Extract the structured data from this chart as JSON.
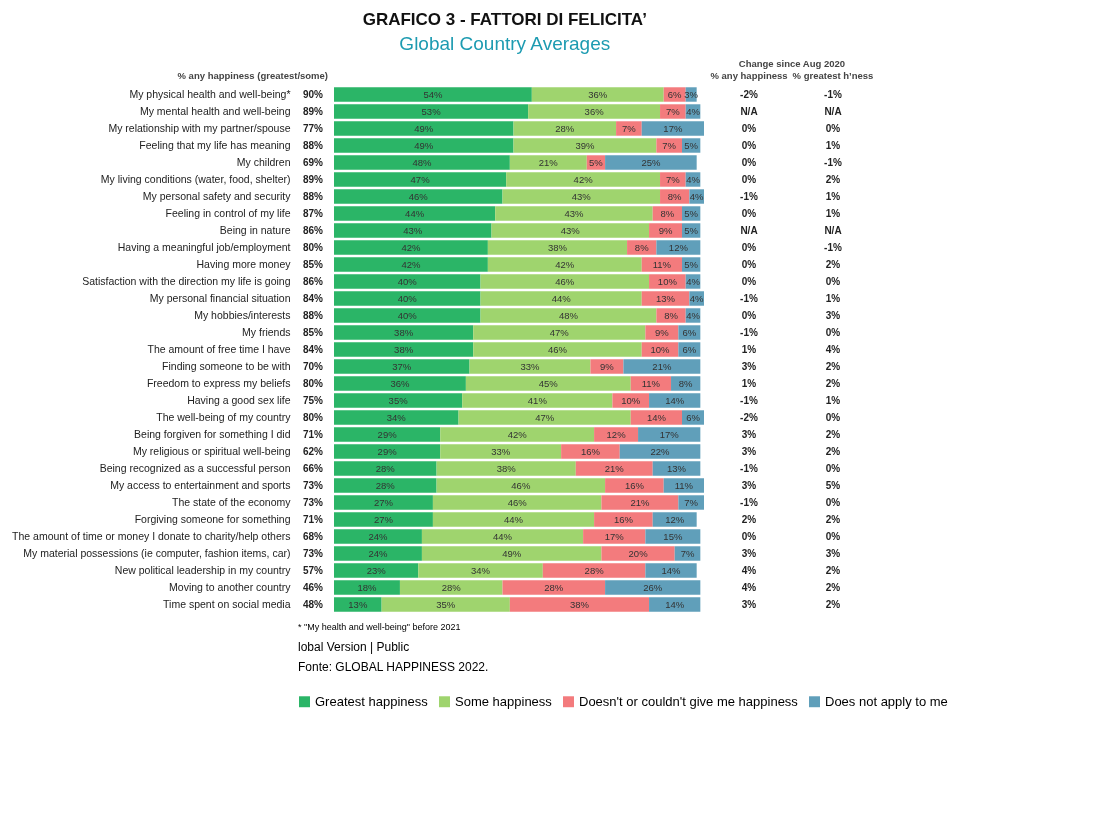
{
  "chart_data": [
    {
      "type": "other",
      "title": "% any happiness (greatest/some)",
      "annotations": [
        "90%",
        "89%",
        "77%",
        "88%",
        "69%",
        "89%",
        "88%",
        "87%",
        "86%",
        "80%",
        "85%",
        "86%",
        "84%",
        "88%",
        "85%",
        "84%",
        "70%",
        "80%",
        "75%",
        "80%",
        "71%",
        "62%",
        "66%",
        "73%",
        "73%",
        "71%",
        "68%",
        "73%",
        "57%",
        "46%",
        "48%"
      ]
    },
    {
      "type": "bar",
      "orientation": "horizontal",
      "stacked": true,
      "legend": "bottom",
      "title": "GRAFICO 3 - FATTORI DI FELICITA’",
      "subtitle": "Global Country Averages",
      "categories": [
        "My physical health and well-being*",
        "My mental health and well-being",
        "My relationship with my partner/spouse",
        "Feeling that my life has meaning",
        "My children",
        "My living conditions (water, food, shelter)",
        "My personal safety and security",
        "Feeling in control of my life",
        "Being in nature",
        "Having a meaningful job/employment",
        "Having more money",
        "Satisfaction with the direction my life is going",
        "My personal financial situation",
        "My hobbies/interests",
        "My friends",
        "The amount of free time I have",
        "Finding someone to be with",
        "Freedom to express my beliefs",
        "Having a good sex life",
        "The well-being of my country",
        "Being forgiven for something I did",
        "My religious or spiritual well-being",
        "Being recognized as a successful person",
        "My access to entertainment and sports",
        "The state of the economy",
        "Forgiving someone for something",
        "The amount of time or money I donate to charity/help others",
        "My material possessions (ie computer, fashion items, car)",
        "New political leadership in my country",
        "Moving to another country",
        "Time spent on social media"
      ],
      "series": [
        {
          "name": "Greatest happiness",
          "color": "#2bb567",
          "values": [
            54,
            53,
            49,
            49,
            48,
            47,
            46,
            44,
            43,
            42,
            42,
            40,
            40,
            40,
            38,
            38,
            37,
            36,
            35,
            34,
            29,
            29,
            28,
            28,
            27,
            27,
            24,
            24,
            23,
            18,
            13
          ],
          "value_labels": [
            "54%",
            "53%",
            "49%",
            "49%",
            "48%",
            "47%",
            "46%",
            "44%",
            "43%",
            "42%",
            "42%",
            "40%",
            "40%",
            "40%",
            "38%",
            "38%",
            "37%",
            "36%",
            "35%",
            "34%",
            "29%",
            "29%",
            "28%",
            "28%",
            "27%",
            "27%",
            "24%",
            "24%",
            "23%",
            "18%",
            "13%"
          ]
        },
        {
          "name": "Some happiness",
          "color": "#9fd46e",
          "values": [
            36,
            36,
            28,
            39,
            21,
            42,
            43,
            43,
            43,
            38,
            42,
            46,
            44,
            48,
            47,
            46,
            33,
            45,
            41,
            47,
            42,
            33,
            38,
            46,
            46,
            44,
            44,
            49,
            34,
            28,
            35
          ],
          "value_labels": [
            "36%",
            "36%",
            "28%",
            "39%",
            "21%",
            "42%",
            "43%",
            "43%",
            "43%",
            "38%",
            "42%",
            "46%",
            "44%",
            "48%",
            "47%",
            "46%",
            "33%",
            "45%",
            "41%",
            "47%",
            "42%",
            "33%",
            "38%",
            "46%",
            "46%",
            "44%",
            "44%",
            "49%",
            "34%",
            "28%",
            "35%"
          ]
        },
        {
          "name": "Doesn't or couldn't give me happiness",
          "color": "#f37b7d",
          "values": [
            6,
            7,
            7,
            7,
            5,
            7,
            8,
            8,
            9,
            8,
            11,
            10,
            13,
            8,
            9,
            10,
            9,
            11,
            10,
            14,
            12,
            16,
            21,
            16,
            21,
            16,
            17,
            20,
            28,
            28,
            38
          ],
          "value_labels": [
            "6%",
            "7%",
            "7%",
            "7%",
            "5%",
            "7%",
            "8%",
            "8%",
            "9%",
            "8%",
            "11%",
            "10%",
            "13%",
            "8%",
            "9%",
            "10%",
            "9%",
            "11%",
            "10%",
            "14%",
            "12%",
            "16%",
            "21%",
            "16%",
            "21%",
            "16%",
            "17%",
            "20%",
            "28%",
            "28%",
            "38%"
          ]
        },
        {
          "name": "Does not apply to me",
          "color": "#609fba",
          "values": [
            3,
            4,
            17,
            5,
            25,
            4,
            4,
            5,
            5,
            12,
            5,
            4,
            4,
            4,
            6,
            6,
            21,
            8,
            14,
            6,
            17,
            22,
            13,
            11,
            7,
            12,
            15,
            7,
            14,
            26,
            14
          ],
          "value_labels": [
            "3%",
            "4%",
            "17%",
            "5%",
            "25%",
            "4%",
            "4%",
            "5%",
            "5%",
            "12%",
            "5%",
            "4%",
            "4%",
            "4%",
            "6%",
            "6%",
            "21%",
            "8%",
            "14%",
            "6%",
            "17%",
            "22%",
            "13%",
            "11%",
            "7%",
            "12%",
            "15%",
            "7%",
            "14%",
            "26%",
            "14%"
          ]
        }
      ],
      "annotations": [
        "* \"My health and well-being\" before 2021",
        "lobal Version | Public",
        "Fonte: GLOBAL HAPPINESS 2022."
      ]
    },
    {
      "type": "other",
      "title": "Change since Aug 2020",
      "subtitle": "% any happiness",
      "annotations": [
        "-2%",
        "N/A",
        "0%",
        "0%",
        "0%",
        "0%",
        "-1%",
        "0%",
        "N/A",
        "0%",
        "0%",
        "0%",
        "-1%",
        "0%",
        "-1%",
        "1%",
        "3%",
        "1%",
        "-1%",
        "-2%",
        "3%",
        "3%",
        "-1%",
        "3%",
        "-1%",
        "2%",
        "0%",
        "3%",
        "4%",
        "4%",
        "3%"
      ]
    },
    {
      "type": "other",
      "title": "% greatest h’ness",
      "annotations": [
        "-1%",
        "N/A",
        "0%",
        "1%",
        "-1%",
        "2%",
        "1%",
        "1%",
        "N/A",
        "-1%",
        "2%",
        "0%",
        "1%",
        "3%",
        "0%",
        "4%",
        "2%",
        "2%",
        "1%",
        "0%",
        "2%",
        "2%",
        "0%",
        "5%",
        "0%",
        "2%",
        "0%",
        "3%",
        "2%",
        "2%",
        "2%"
      ]
    }
  ]
}
